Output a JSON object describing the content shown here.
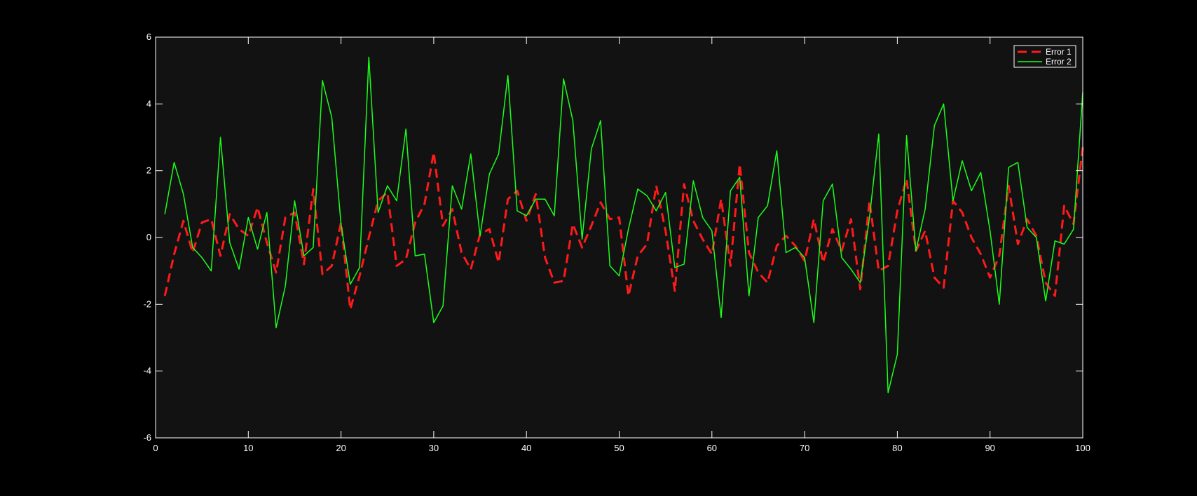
{
  "chart_data": {
    "type": "line",
    "title": "",
    "xlabel": "",
    "ylabel": "",
    "xlim": [
      0,
      100
    ],
    "ylim": [
      -6,
      6
    ],
    "xticks": [
      0,
      10,
      20,
      30,
      40,
      50,
      60,
      70,
      80,
      90,
      100
    ],
    "yticks": [
      -6,
      -4,
      -2,
      0,
      2,
      4,
      6
    ],
    "grid": false,
    "legend_position": "top-right",
    "background": "#121212",
    "axis_color": "#ffffff",
    "x": [
      1,
      2,
      3,
      4,
      5,
      6,
      7,
      8,
      9,
      10,
      11,
      12,
      13,
      14,
      15,
      16,
      17,
      18,
      19,
      20,
      21,
      22,
      23,
      24,
      25,
      26,
      27,
      28,
      29,
      30,
      31,
      32,
      33,
      34,
      35,
      36,
      37,
      38,
      39,
      40,
      41,
      42,
      43,
      44,
      45,
      46,
      47,
      48,
      49,
      50,
      51,
      52,
      53,
      54,
      55,
      56,
      57,
      58,
      59,
      60,
      61,
      62,
      63,
      64,
      65,
      66,
      67,
      68,
      69,
      70,
      71,
      72,
      73,
      74,
      75,
      76,
      77,
      78,
      79,
      80,
      81,
      82,
      83,
      84,
      85,
      86,
      87,
      88,
      89,
      90,
      91,
      92,
      93,
      94,
      95,
      96,
      97,
      98,
      99,
      100
    ],
    "series": [
      {
        "name": "Error 1",
        "color": "#ff1a1a",
        "style": "dashed",
        "values": [
          -1.75,
          -0.5,
          0.5,
          -0.45,
          0.45,
          0.55,
          -0.55,
          0.7,
          0.25,
          0.05,
          0.9,
          -0.15,
          -1.05,
          0.6,
          0.75,
          -0.8,
          1.45,
          -1.1,
          -0.85,
          0.45,
          -2.15,
          -1.15,
          0.0,
          1.1,
          1.35,
          -0.85,
          -0.65,
          0.45,
          1.0,
          2.55,
          0.35,
          0.85,
          -0.45,
          -0.95,
          0.1,
          0.25,
          -0.75,
          1.15,
          1.4,
          0.5,
          1.3,
          -0.6,
          -1.35,
          -1.3,
          0.4,
          -0.3,
          0.35,
          1.05,
          0.55,
          0.6,
          -1.75,
          -0.55,
          -0.2,
          1.55,
          0.2,
          -1.6,
          1.6,
          0.5,
          -0.05,
          -0.5,
          1.15,
          -0.85,
          2.2,
          -0.45,
          -1.05,
          -1.35,
          -0.25,
          0.05,
          -0.25,
          -0.7,
          0.55,
          -0.75,
          0.25,
          -0.4,
          0.55,
          -1.55,
          1.1,
          -1.0,
          -0.85,
          0.8,
          1.75,
          -0.4,
          0.2,
          -1.2,
          -1.5,
          1.1,
          0.75,
          0.0,
          -0.5,
          -1.2,
          -0.55,
          1.55,
          -0.2,
          0.55,
          0.05,
          -1.35,
          -1.75,
          0.95,
          0.4,
          2.7
        ]
      },
      {
        "name": "Error 2",
        "color": "#1aff1a",
        "style": "solid",
        "values": [
          0.7,
          2.25,
          1.3,
          -0.3,
          -0.6,
          -1.0,
          3.0,
          -0.15,
          -0.95,
          0.6,
          -0.35,
          0.75,
          -2.7,
          -1.45,
          1.1,
          -0.55,
          -0.3,
          4.7,
          3.6,
          0.4,
          -1.4,
          -0.9,
          5.4,
          0.75,
          1.55,
          1.1,
          3.25,
          -0.55,
          -0.5,
          -2.55,
          -2.05,
          1.55,
          0.85,
          2.5,
          0.05,
          1.9,
          2.5,
          4.85,
          0.8,
          0.65,
          1.15,
          1.15,
          0.65,
          4.75,
          3.5,
          -0.05,
          2.65,
          3.5,
          -0.85,
          -1.15,
          0.25,
          1.45,
          1.25,
          0.8,
          1.35,
          -0.9,
          -0.8,
          1.7,
          0.6,
          0.2,
          -2.4,
          1.4,
          1.8,
          -1.75,
          0.6,
          0.95,
          2.6,
          -0.45,
          -0.3,
          -0.6,
          -2.55,
          1.1,
          1.6,
          -0.6,
          -0.95,
          -1.35,
          0.6,
          3.1,
          -4.65,
          -3.5,
          3.05,
          -0.4,
          0.85,
          3.35,
          4.0,
          1.1,
          2.3,
          1.4,
          1.95,
          0.2,
          -2.0,
          2.1,
          2.25,
          0.3,
          0.0,
          -1.9,
          -0.1,
          -0.2,
          0.25,
          4.35
        ]
      }
    ]
  }
}
